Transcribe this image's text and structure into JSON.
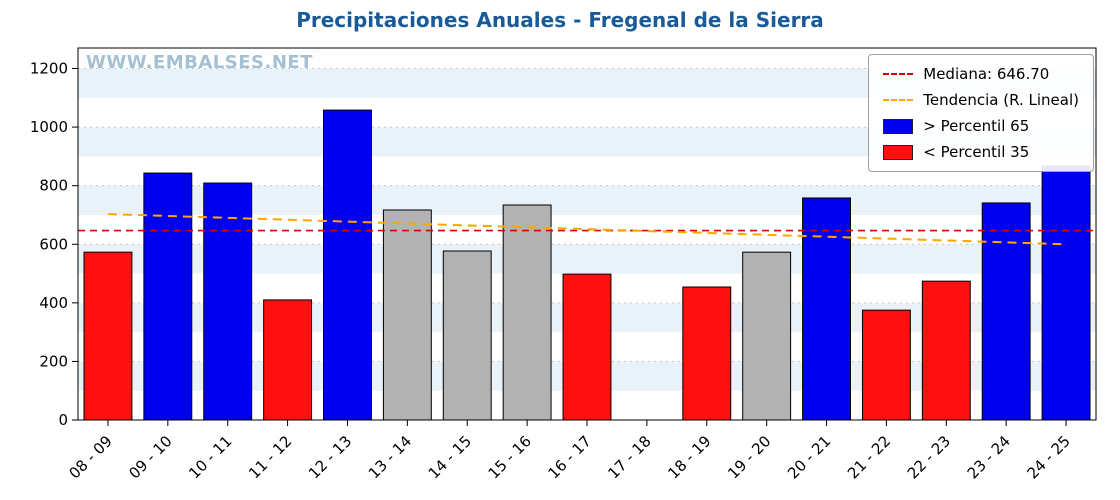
{
  "watermark": "WWW.EMBALSES.NET",
  "chart_data": {
    "type": "bar",
    "title": "Precipitaciones Anuales - Fregenal de la Sierra",
    "xlabel": "",
    "ylabel": "",
    "categories": [
      "08 - 09",
      "09 - 10",
      "10 - 11",
      "11 - 12",
      "12 - 13",
      "13 - 14",
      "14 - 15",
      "15 - 16",
      "16 - 17",
      "17 - 18",
      "18 - 19",
      "19 - 20",
      "20 - 21",
      "21 - 22",
      "22 - 23",
      "23 - 24",
      "24 - 25"
    ],
    "values": [
      573,
      843,
      809,
      410,
      1058,
      717,
      577,
      734,
      498,
      null,
      454,
      573,
      758,
      375,
      474,
      741,
      867
    ],
    "bar_colors": [
      "red",
      "blue",
      "blue",
      "red",
      "blue",
      "gray",
      "gray",
      "gray",
      "red",
      "none",
      "red",
      "gray",
      "blue",
      "red",
      "red",
      "blue",
      "blue"
    ],
    "median": 646.7,
    "trend": {
      "start": 703,
      "end": 600
    },
    "ylim": [
      0,
      1270
    ],
    "yticks": [
      0,
      200,
      400,
      600,
      800,
      1000,
      1200
    ],
    "grid": true,
    "legend_position": "top-right",
    "legend": [
      {
        "label": "Mediana: 646.70",
        "type": "line",
        "color": "#dd0000"
      },
      {
        "label": "Tendencia (R. Lineal)",
        "type": "line",
        "color": "#ffa500"
      },
      {
        "label": "> Percentil 65",
        "type": "patch",
        "color": "#0000ee"
      },
      {
        "label": "< Percentil 35",
        "type": "patch",
        "color": "#ff0f0f"
      }
    ],
    "colors": {
      "blue": "#0000ee",
      "red": "#ff0f0f",
      "gray": "#b2b2b2",
      "median": "#dd0000",
      "trend": "#ffa500",
      "band": "#e9f2f9",
      "grid": "#c8c8c8",
      "title": "#1a5a96",
      "watermark": "#a3c0d4"
    }
  }
}
